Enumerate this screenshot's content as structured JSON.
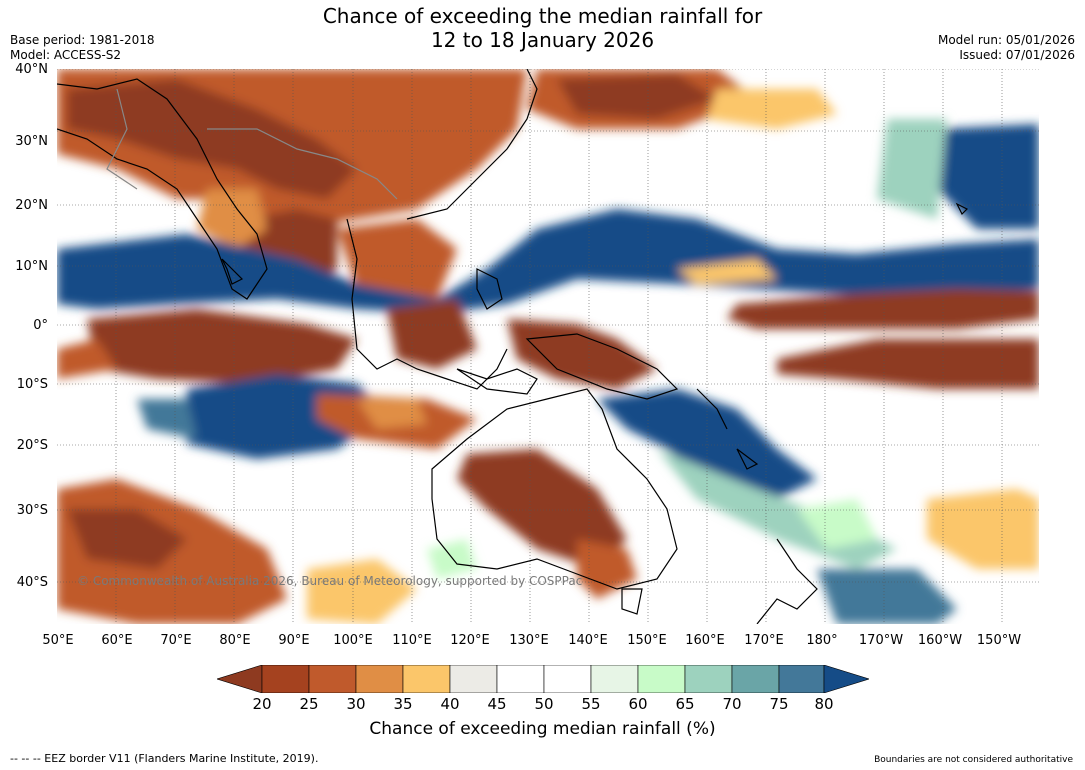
{
  "title": {
    "line1": "Chance of exceeding the median rainfall for",
    "line2": "12 to 18 January 2026"
  },
  "meta_left": {
    "base_period": "Base period: 1981-2018",
    "model": "Model: ACCESS-S2"
  },
  "meta_right": {
    "model_run": "Model run: 05/01/2026",
    "issued": "Issued: 07/01/2026"
  },
  "map": {
    "copyright": "© Commonwealth of Australia 2026, Bureau of Meteorology, supported by COSPPac",
    "lat_labels": [
      "40°N",
      "30°N",
      "20°N",
      "10°N",
      "0°",
      "10°S",
      "20°S",
      "30°S",
      "40°S"
    ],
    "lon_labels": [
      "50°E",
      "60°E",
      "70°E",
      "80°E",
      "90°E",
      "100°E",
      "110°E",
      "120°E",
      "130°E",
      "140°E",
      "150°E",
      "160°E",
      "170°E",
      "180°",
      "170°W",
      "160°W",
      "150°W"
    ],
    "colors": {
      "lt20": "#8e3a20",
      "p20_25": "#a5421f",
      "p25_30": "#c05a2c",
      "p30_35": "#e08e45",
      "p35_40": "#fbc66a",
      "p40_45": "#ecebe6",
      "p45_55": "#ffffff",
      "p55_60": "#e7f5e6",
      "p60_65": "#c8fbc8",
      "p65_70": "#9dd2be",
      "p70_75": "#6aa5a7",
      "p75_80": "#437899",
      "gt80": "#154c87"
    }
  },
  "colorbar": {
    "ticks": [
      "20",
      "25",
      "30",
      "35",
      "40",
      "45",
      "50",
      "55",
      "60",
      "65",
      "70",
      "75",
      "80"
    ],
    "label": "Chance of exceeding median rainfall (%)"
  },
  "footer": {
    "eez": "--  --  -- EEZ border V11 (Flanders Marine Institute, 2019).",
    "disclaimer": "Boundaries are not considered authoritative"
  }
}
